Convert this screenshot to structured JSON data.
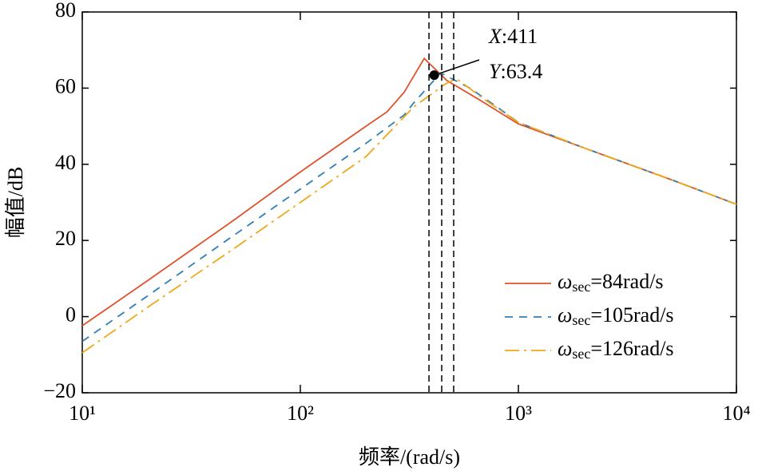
{
  "chart_data": {
    "type": "line",
    "x_label": "频率/(rad/s)",
    "y_label": "幅值/dB",
    "log_x": true,
    "xlim": [
      10,
      10000
    ],
    "xticks": [
      {
        "value": 10,
        "label": "10¹"
      },
      {
        "value": 100,
        "label": "10²"
      },
      {
        "value": 1000,
        "label": "10³"
      },
      {
        "value": 10000,
        "label": "10⁴"
      }
    ],
    "ylim": [
      -20,
      80
    ],
    "yticks": [
      {
        "value": -20,
        "label": "−20"
      },
      0,
      20,
      40,
      60,
      80
    ],
    "legend": "lower right",
    "vlines": [
      389,
      445,
      505
    ],
    "annotation": {
      "x_name": "X",
      "y_name": "Y",
      "separator": ":",
      "x": 411,
      "y": 63.4
    },
    "series": [
      {
        "name": "ωsec=84rad/s",
        "color": "#e0522e",
        "dash": "none",
        "x": [
          10,
          20,
          50,
          100,
          200,
          250,
          300,
          370,
          470,
          660,
          1000,
          2000,
          5000,
          10000
        ],
        "values": [
          -2.4,
          9.5,
          25.5,
          38,
          50,
          53.8,
          59,
          67.8,
          62,
          57,
          50.6,
          44.3,
          36,
          29.5
        ]
      },
      {
        "name": "ωsec=105rad/s",
        "color": "#2e7fb8",
        "dash": "10,8",
        "x": [
          10,
          20,
          50,
          100,
          200,
          300,
          330,
          440,
          600,
          800,
          1000,
          2000,
          5000,
          10000
        ],
        "values": [
          -6.5,
          5.5,
          21.5,
          33.5,
          45.5,
          53,
          56,
          64,
          60,
          55,
          51,
          44.3,
          36,
          29.5
        ]
      },
      {
        "name": "ωsec=126rad/s",
        "color": "#f0a818",
        "dash": "18,6,3,6",
        "x": [
          10,
          20,
          50,
          100,
          200,
          330,
          460,
          520,
          700,
          1000,
          2000,
          5000,
          10000
        ],
        "values": [
          -9.5,
          2.5,
          18,
          30,
          42,
          55,
          61,
          62.5,
          57,
          51,
          44.3,
          36,
          29.5
        ]
      }
    ]
  }
}
